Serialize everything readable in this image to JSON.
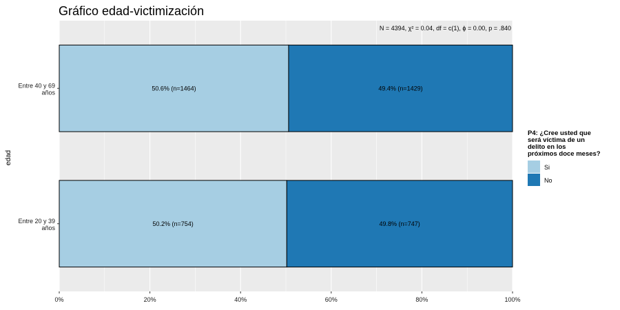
{
  "chart_data": {
    "type": "bar",
    "orientation": "horizontal",
    "stacked": "percent",
    "title": "Gráfico edad-victimización",
    "ylabel": "edad",
    "xlabel": "",
    "stat_annotation": "N = 4394,  χ² = 0.04,  df = c(1),  ϕ = 0.00,  p = .840",
    "categories": [
      {
        "line1": "Entre 40 y 69",
        "line2": "años"
      },
      {
        "line1": "Entre 20 y 39",
        "line2": "años"
      }
    ],
    "series": [
      {
        "name": "Si",
        "color": "#a6cee3",
        "values": [
          50.6,
          50.2
        ],
        "labels": [
          "50.6% (n=1464)",
          "50.2% (n=754)"
        ]
      },
      {
        "name": "No",
        "color": "#1f78b4",
        "values": [
          49.4,
          49.8
        ],
        "labels": [
          "49.4% (n=1429)",
          "49.8% (n=747)"
        ]
      }
    ],
    "xlim": [
      0,
      100
    ],
    "x_ticks": [
      0,
      20,
      40,
      60,
      80,
      100
    ],
    "x_tick_labels": [
      "0%",
      "20%",
      "40%",
      "60%",
      "80%",
      "100%"
    ],
    "grid": true,
    "legend": {
      "position": "right",
      "title_lines": [
        "P4: ¿Cree usted que",
        "será víctima de un",
        "delito en los",
        "próximos doce meses?"
      ]
    }
  }
}
